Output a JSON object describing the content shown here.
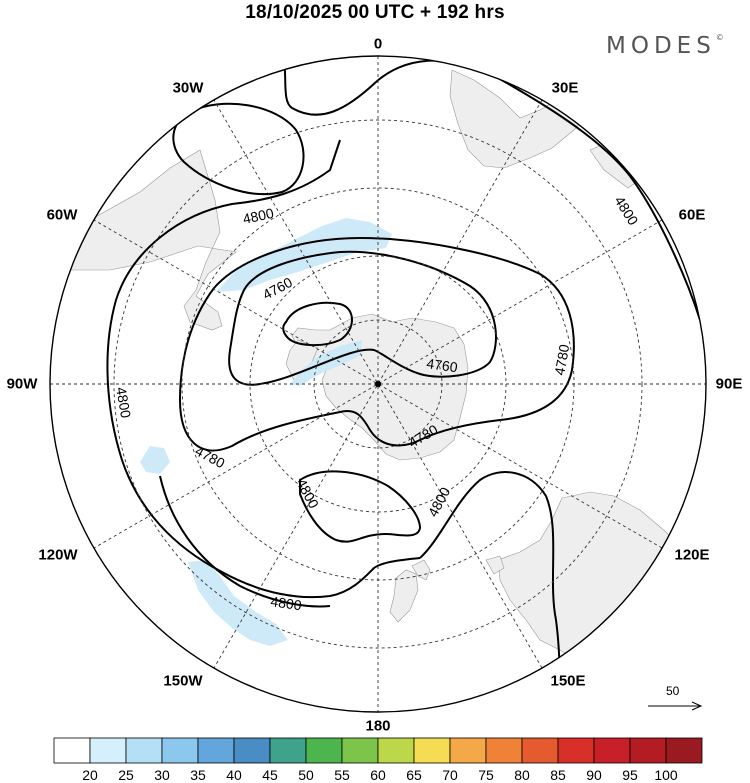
{
  "header": {
    "title": "18/10/2025  00 UTC  + 192 hrs",
    "logo": "MODES",
    "logo_mark": "©"
  },
  "longitude_labels": [
    {
      "id": "lon-0",
      "text": "0"
    },
    {
      "id": "lon-30e",
      "text": "30E"
    },
    {
      "id": "lon-60e",
      "text": "60E"
    },
    {
      "id": "lon-90e",
      "text": "90E"
    },
    {
      "id": "lon-120e",
      "text": "120E"
    },
    {
      "id": "lon-150e",
      "text": "150E"
    },
    {
      "id": "lon-180",
      "text": "180"
    },
    {
      "id": "lon-150w",
      "text": "150W"
    },
    {
      "id": "lon-120w",
      "text": "120W"
    },
    {
      "id": "lon-90w",
      "text": "90W"
    },
    {
      "id": "lon-60w",
      "text": "60W"
    },
    {
      "id": "lon-30w",
      "text": "30W"
    }
  ],
  "contours": {
    "levels": [
      4760,
      4780,
      4800
    ],
    "labels": [
      {
        "id": "c1",
        "text": "4800"
      },
      {
        "id": "c2",
        "text": "4760"
      },
      {
        "id": "c3",
        "text": "4800"
      },
      {
        "id": "c4",
        "text": "4780"
      },
      {
        "id": "c5",
        "text": "4760"
      },
      {
        "id": "c6",
        "text": "4800"
      },
      {
        "id": "c7",
        "text": "4780"
      },
      {
        "id": "c8",
        "text": "4780"
      },
      {
        "id": "c9",
        "text": "4800"
      },
      {
        "id": "c10",
        "text": "4800"
      },
      {
        "id": "c11",
        "text": "4800"
      }
    ]
  },
  "wind_reference": {
    "value": "50"
  },
  "colorbar": {
    "labels": [
      "20",
      "25",
      "30",
      "35",
      "40",
      "45",
      "50",
      "55",
      "60",
      "65",
      "70",
      "75",
      "80",
      "85",
      "90",
      "95",
      "100"
    ],
    "colors": [
      "#ffffff",
      "#d6f0fb",
      "#b4e0f6",
      "#8cc8ee",
      "#62a6dc",
      "#4a8cc4",
      "#3fa28a",
      "#4cb54e",
      "#7dc44a",
      "#bcd74a",
      "#f5dc52",
      "#f5a847",
      "#f08238",
      "#e65a30",
      "#d83028",
      "#c82028",
      "#b41c24",
      "#991a20"
    ]
  }
}
